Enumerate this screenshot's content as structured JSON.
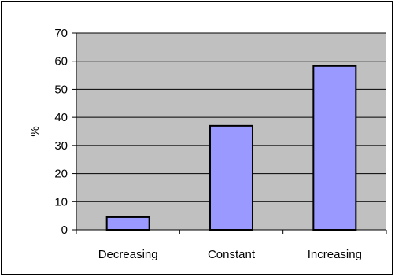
{
  "chart_data": {
    "type": "bar",
    "title": "",
    "xlabel": "",
    "ylabel": "%",
    "categories": [
      "Decreasing",
      "Constant",
      "Increasing"
    ],
    "values": [
      4.5,
      37,
      58.3
    ],
    "ylim": [
      0,
      70
    ],
    "yticks": [
      0,
      10,
      20,
      30,
      40,
      50,
      60,
      70
    ],
    "grid": true,
    "legend": "none",
    "colors": {
      "bar_fill": "#9999ff",
      "bar_stroke": "#000000",
      "plot_background": "#c0c0c0",
      "gridline": "#000000"
    }
  }
}
